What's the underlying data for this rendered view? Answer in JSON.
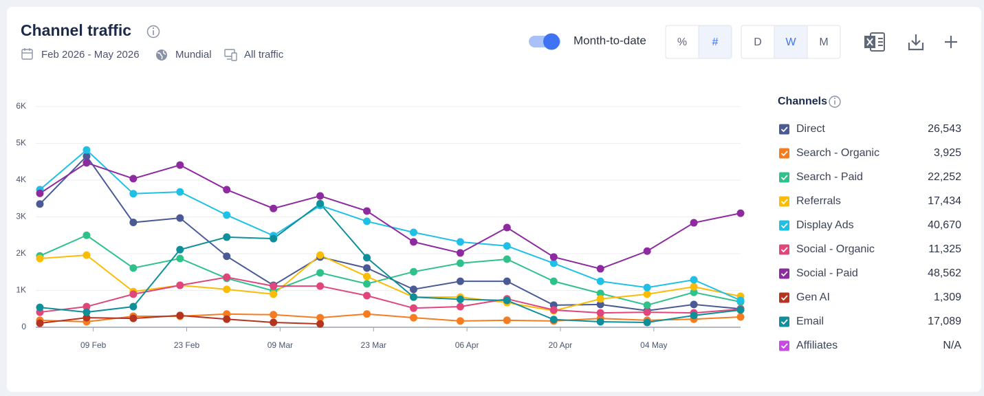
{
  "header": {
    "title": "Channel traffic",
    "date_range": "Feb 2026 - May 2026",
    "region": "Mundial",
    "traffic": "All traffic"
  },
  "controls": {
    "toggle_label": "Month-to-date",
    "units": [
      "%",
      "#"
    ],
    "granularity": [
      "D",
      "W",
      "M"
    ]
  },
  "chart_data": {
    "type": "line",
    "legend_title": "Channels",
    "x": [
      "01 Feb",
      "08 Feb",
      "15 Feb",
      "22 Feb",
      "01 Mar",
      "08 Mar",
      "15 Mar",
      "22 Mar",
      "29 Mar",
      "05 Apr",
      "12 Apr",
      "19 Apr",
      "26 Apr",
      "03 May",
      "10 May",
      "17 May"
    ],
    "xlim": [
      "01 Feb",
      "17 May"
    ],
    "xticks": [
      "09 Feb",
      "23 Feb",
      "09 Mar",
      "23 Mar",
      "06 Apr",
      "20 Apr",
      "04 May"
    ],
    "ylim": [
      0,
      6000
    ],
    "yticks": [
      0,
      {
        "value": 1000,
        "label": "1K"
      },
      {
        "value": 2000,
        "label": "2K"
      },
      {
        "value": 3000,
        "label": "3K"
      },
      {
        "value": 4000,
        "label": "4K"
      },
      {
        "value": 5000,
        "label": "5K"
      },
      {
        "value": 6000,
        "label": "6K"
      }
    ],
    "grid": true,
    "series": [
      {
        "name": "Direct",
        "color": "#4a5a94",
        "total": "26,543",
        "values": [
          3350,
          4650,
          2850,
          2970,
          1930,
          1140,
          1910,
          1610,
          1030,
          1250,
          1250,
          600,
          620,
          450,
          620,
          500
        ]
      },
      {
        "name": "Search - Organic",
        "color": "#f57c1f",
        "total": "3,925",
        "values": [
          190,
          150,
          300,
          300,
          360,
          340,
          260,
          360,
          260,
          170,
          190,
          170,
          240,
          190,
          220,
          280
        ]
      },
      {
        "name": "Search - Paid",
        "color": "#2ec28a",
        "total": "22,252",
        "values": [
          1940,
          2500,
          1610,
          1870,
          1330,
          990,
          1480,
          1180,
          1510,
          1740,
          1850,
          1250,
          920,
          600,
          950,
          690
        ]
      },
      {
        "name": "Referrals",
        "color": "#fbbc05",
        "total": "17,434",
        "values": [
          1870,
          1960,
          970,
          1140,
          1030,
          900,
          1960,
          1380,
          820,
          820,
          670,
          450,
          770,
          900,
          1100,
          840
        ]
      },
      {
        "name": "Display Ads",
        "color": "#1fc0e6",
        "total": "40,670",
        "values": [
          3740,
          4820,
          3630,
          3680,
          3050,
          2490,
          3310,
          2880,
          2580,
          2320,
          2210,
          1740,
          1250,
          1080,
          1290,
          730
        ]
      },
      {
        "name": "Social - Organic",
        "color": "#e0457b",
        "total": "11,325",
        "values": [
          410,
          560,
          900,
          1140,
          1360,
          1120,
          1120,
          860,
          520,
          560,
          770,
          470,
          390,
          410,
          390,
          490
        ]
      },
      {
        "name": "Social - Paid",
        "color": "#8e2aa0",
        "total": "48,562",
        "values": [
          3640,
          4470,
          4040,
          4410,
          3740,
          3230,
          3570,
          3160,
          2320,
          2020,
          2710,
          1910,
          1590,
          2070,
          2840,
          3100
        ]
      },
      {
        "name": "Gen AI",
        "color": "#b5341f",
        "total": "1,309",
        "values": [
          110,
          260,
          240,
          320,
          220,
          130,
          90,
          null,
          null,
          null,
          null,
          null,
          null,
          null,
          null,
          null
        ]
      },
      {
        "name": "Email",
        "color": "#0f8f9a",
        "total": "17,089",
        "values": [
          540,
          410,
          560,
          2110,
          2450,
          2410,
          3360,
          1890,
          820,
          760,
          730,
          210,
          150,
          130,
          320,
          470
        ]
      },
      {
        "name": "Affiliates",
        "color": "#c64ae0",
        "total": "N/A",
        "values": [
          null,
          null,
          null,
          null,
          null,
          null,
          null,
          null,
          null,
          null,
          null,
          null,
          null,
          null,
          null,
          null
        ]
      }
    ]
  }
}
